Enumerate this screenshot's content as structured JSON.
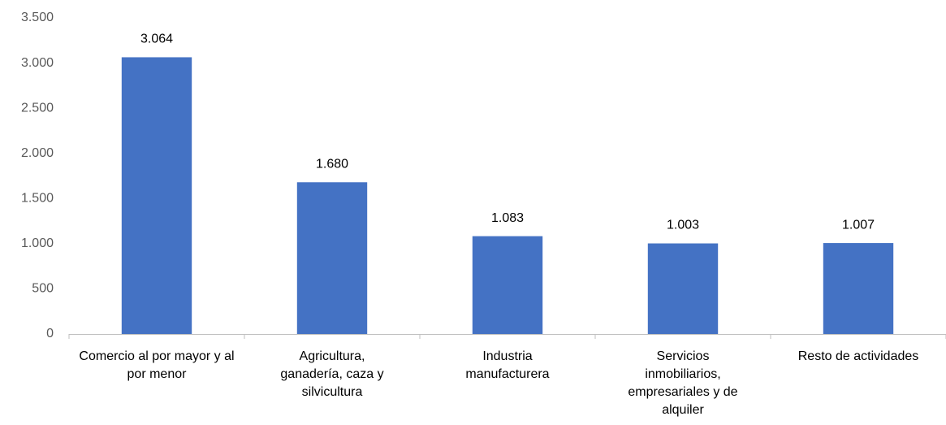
{
  "chart_data": {
    "type": "bar",
    "categories": [
      "Comercio al por mayor y al por menor",
      "Agricultura, ganadería, caza y silvicultura",
      "Industria manufacturera",
      "Servicios inmobiliarios, empresariales y de alquiler",
      "Resto de actividades"
    ],
    "values": [
      3064,
      1680,
      1083,
      1003,
      1007
    ],
    "value_labels": [
      "3.064",
      "1.680",
      "1.083",
      "1.003",
      "1.007"
    ],
    "color": "#4472c4",
    "ylim": [
      0,
      3500
    ],
    "yticks": [
      0,
      500,
      {
        "value": 1000,
        "label": "1.000"
      },
      {
        "value": 1500,
        "label": "1.500"
      },
      {
        "value": 2000,
        "label": "2.000"
      },
      {
        "value": 2500,
        "label": "2.500"
      },
      {
        "value": 3000,
        "label": "3.000"
      },
      {
        "value": 3500,
        "label": "3.500"
      }
    ],
    "grid": false
  }
}
